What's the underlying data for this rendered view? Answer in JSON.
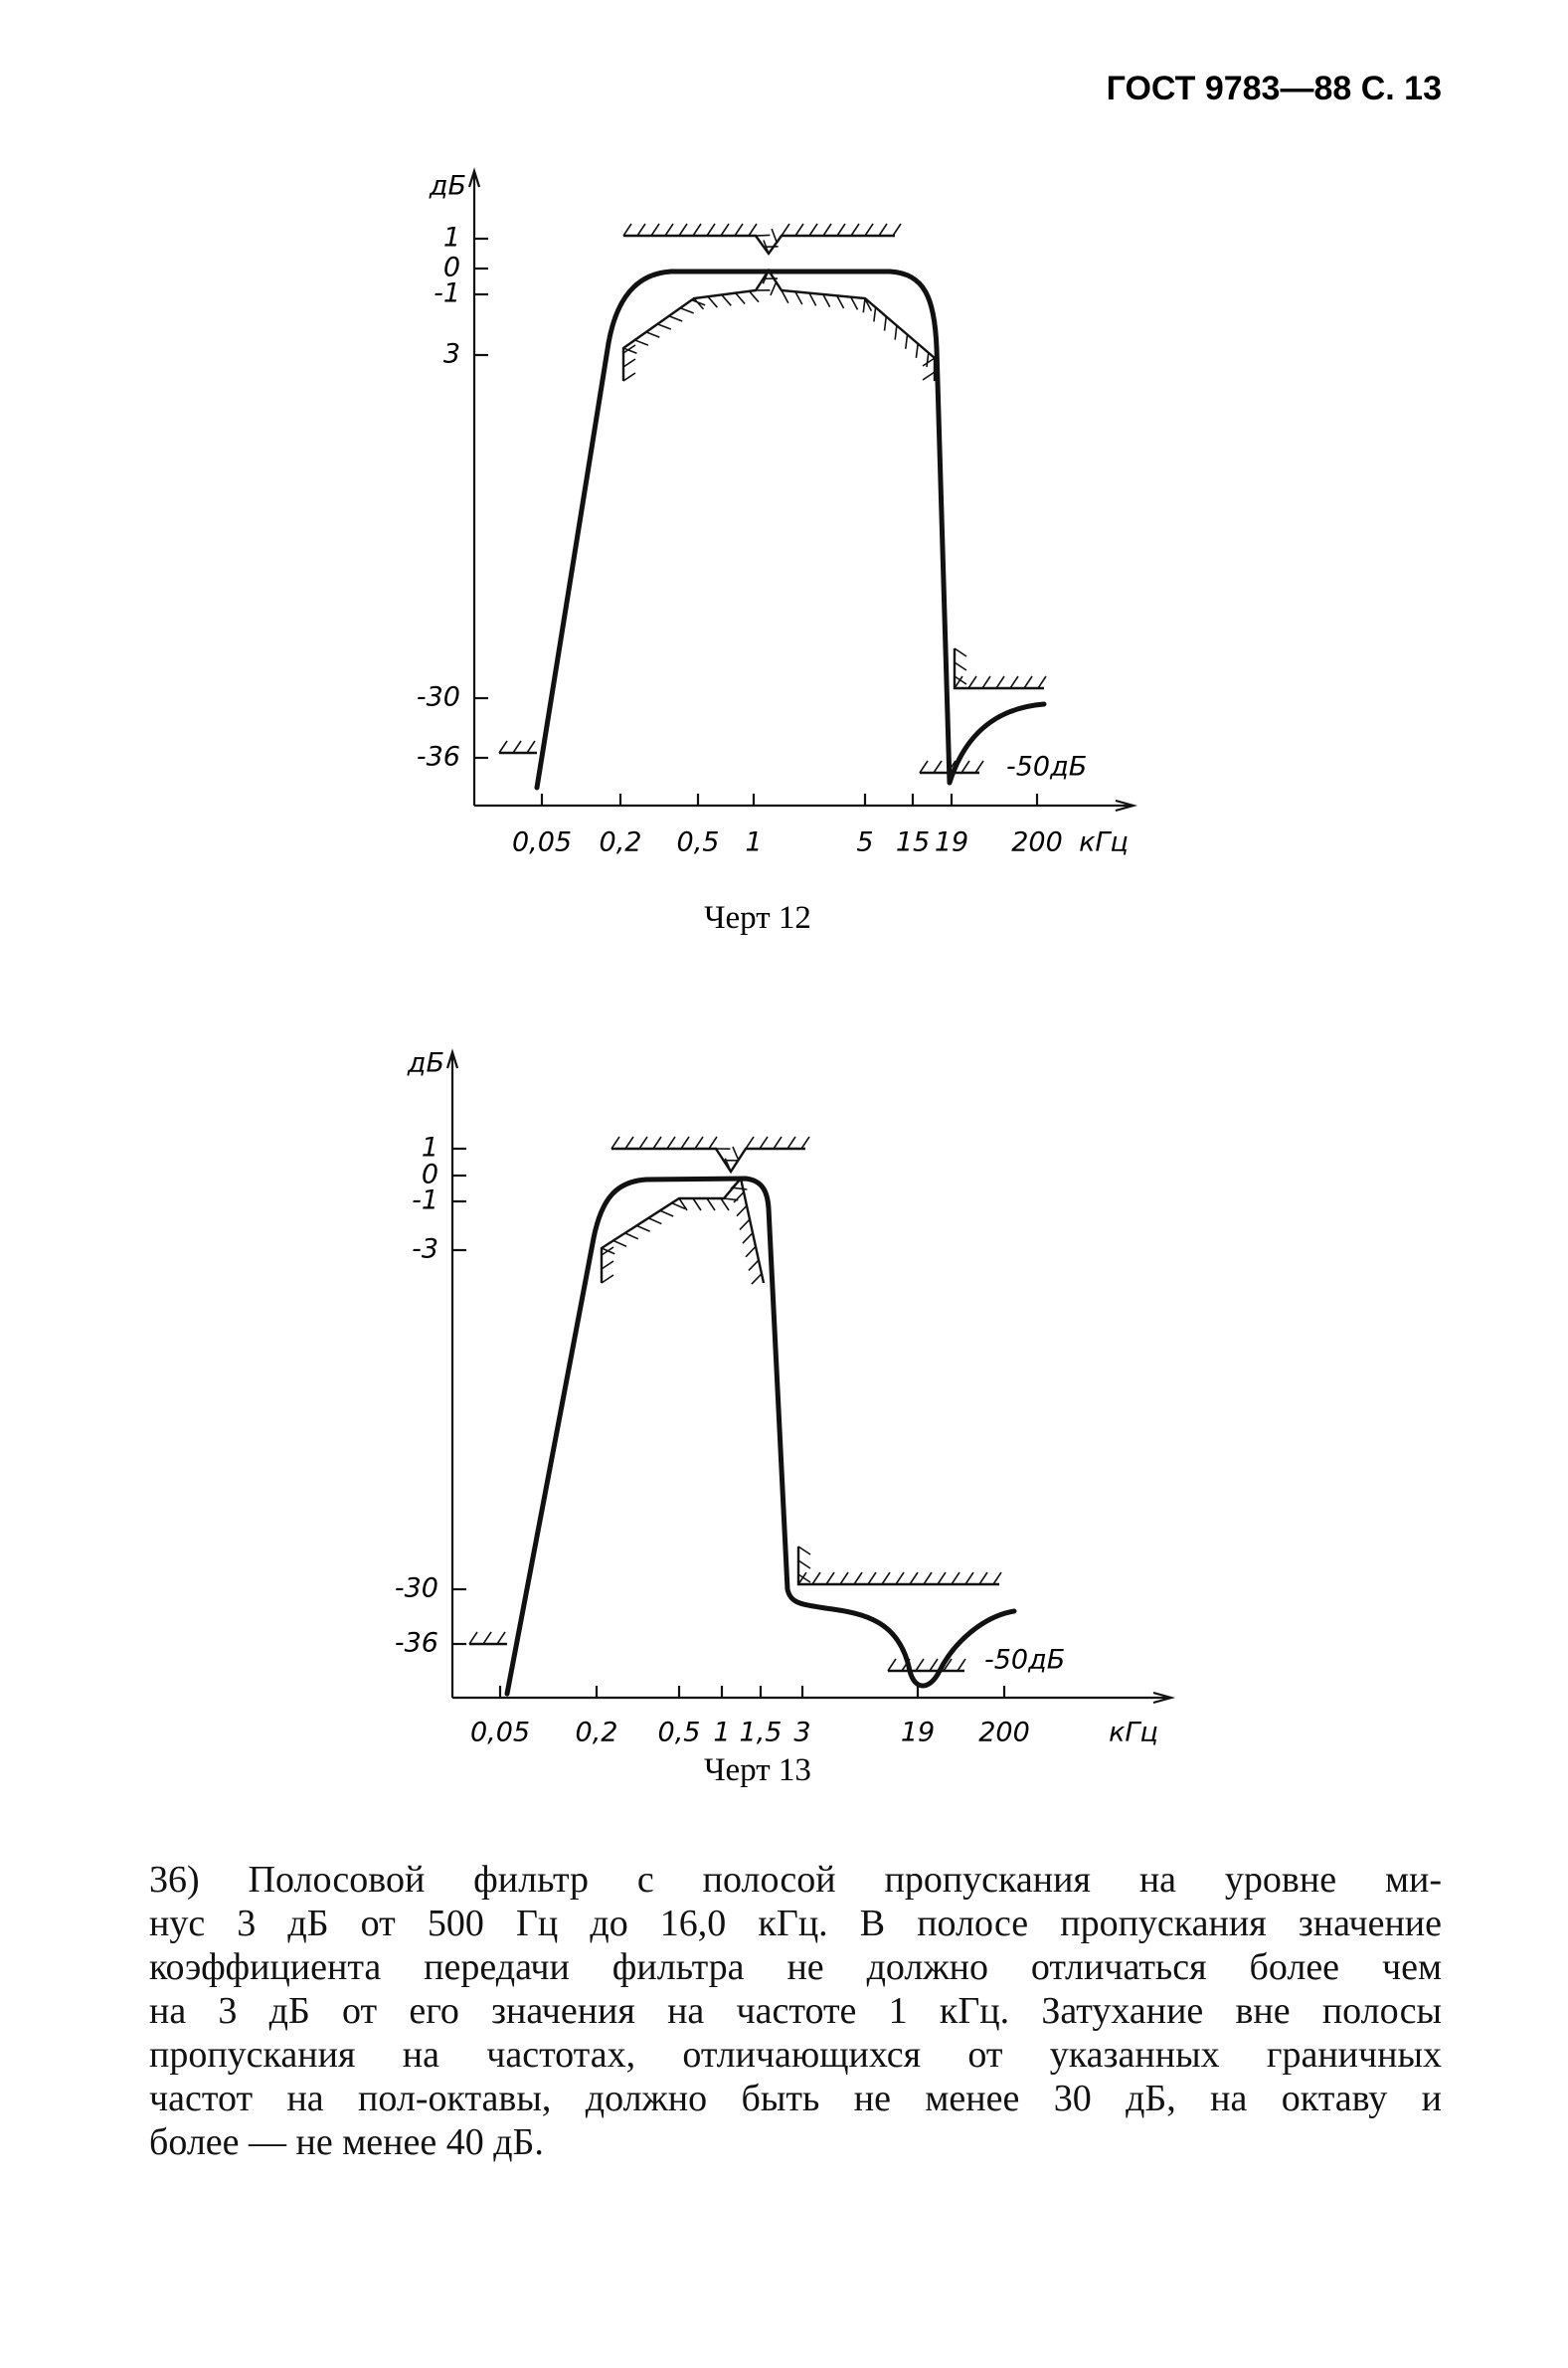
{
  "header": {
    "title": "ГОСТ 9783—88 С. 13"
  },
  "figures": [
    {
      "y_unit": "дБ",
      "y_labels": [
        "1",
        "0",
        "-1",
        "3",
        "-30",
        "-36"
      ],
      "x_labels": [
        "0,05",
        "0,2",
        "0,5",
        "1",
        "5",
        "15",
        "19",
        "200"
      ],
      "x_unit": "кГц",
      "annotation": "-50дБ",
      "caption": "Черт 12"
    },
    {
      "y_unit": "дБ",
      "y_labels": [
        "1",
        "0",
        "-1",
        "-3",
        "-30",
        "-36"
      ],
      "x_labels": [
        "0,05",
        "0,2",
        "0,5",
        "1",
        "1,5",
        "3",
        "19",
        "200"
      ],
      "x_unit": "кГц",
      "annotation": "-50дБ",
      "caption": "Черт 13"
    }
  ],
  "paragraph": {
    "lines": [
      "36) Полосовой фильтр с полосой пропускания на уровне ми-",
      "нус 3 дБ от 500 Гц до 16,0 кГц. В полосе пропускания значение",
      "коэффициента передачи фильтра не должно отличаться более чем",
      "на 3 дБ от его значения на частоте 1 кГц. Затухание вне полосы",
      "пропускания на частотах, отличающихся от указанных граничных",
      "частот на пол-октавы, должно быть не менее 30 дБ, на октаву и",
      "более — не менее 40 дБ."
    ]
  }
}
